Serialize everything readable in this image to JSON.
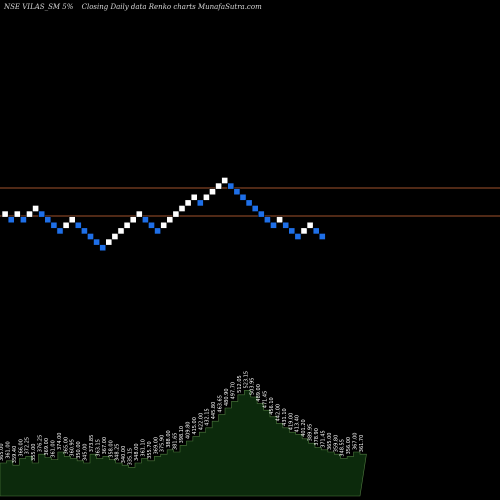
{
  "header": {
    "symbol": "NSE VILAS_SM 5%",
    "title": "Closing Daily data Renko charts MunafaSutra.com"
  },
  "colors": {
    "background": "#000000",
    "up_brick": "#ffffff",
    "down_brick": "#1e6fe8",
    "brick_border": "#000000",
    "level_line": "#a0522d",
    "volume_fill": "#0c2a0c",
    "volume_stroke": "#4f7a3f"
  },
  "chart_data": {
    "type": "renko",
    "brick_size_percent": 5,
    "reference_levels": [
      0,
      5
    ],
    "bricks": [
      {
        "level": 0,
        "dir": "up"
      },
      {
        "level": -1,
        "dir": "down"
      },
      {
        "level": 0,
        "dir": "up"
      },
      {
        "level": -1,
        "dir": "down"
      },
      {
        "level": 0,
        "dir": "up"
      },
      {
        "level": 1,
        "dir": "up"
      },
      {
        "level": 0,
        "dir": "down"
      },
      {
        "level": -1,
        "dir": "down"
      },
      {
        "level": -2,
        "dir": "down"
      },
      {
        "level": -3,
        "dir": "down"
      },
      {
        "level": -2,
        "dir": "up"
      },
      {
        "level": -1,
        "dir": "up"
      },
      {
        "level": -2,
        "dir": "down"
      },
      {
        "level": -3,
        "dir": "down"
      },
      {
        "level": -4,
        "dir": "down"
      },
      {
        "level": -5,
        "dir": "down"
      },
      {
        "level": -6,
        "dir": "down"
      },
      {
        "level": -5,
        "dir": "up"
      },
      {
        "level": -4,
        "dir": "up"
      },
      {
        "level": -3,
        "dir": "up"
      },
      {
        "level": -2,
        "dir": "up"
      },
      {
        "level": -1,
        "dir": "up"
      },
      {
        "level": 0,
        "dir": "up"
      },
      {
        "level": -1,
        "dir": "down"
      },
      {
        "level": -2,
        "dir": "down"
      },
      {
        "level": -3,
        "dir": "down"
      },
      {
        "level": -2,
        "dir": "up"
      },
      {
        "level": -1,
        "dir": "up"
      },
      {
        "level": 0,
        "dir": "up"
      },
      {
        "level": 1,
        "dir": "up"
      },
      {
        "level": 2,
        "dir": "up"
      },
      {
        "level": 3,
        "dir": "up"
      },
      {
        "level": 2,
        "dir": "down"
      },
      {
        "level": 3,
        "dir": "up"
      },
      {
        "level": 4,
        "dir": "up"
      },
      {
        "level": 5,
        "dir": "up"
      },
      {
        "level": 6,
        "dir": "up"
      },
      {
        "level": 5,
        "dir": "down"
      },
      {
        "level": 4,
        "dir": "down"
      },
      {
        "level": 3,
        "dir": "down"
      },
      {
        "level": 2,
        "dir": "down"
      },
      {
        "level": 1,
        "dir": "down"
      },
      {
        "level": 0,
        "dir": "down"
      },
      {
        "level": -1,
        "dir": "down"
      },
      {
        "level": -2,
        "dir": "down"
      },
      {
        "level": -1,
        "dir": "up"
      },
      {
        "level": -2,
        "dir": "down"
      },
      {
        "level": -3,
        "dir": "down"
      },
      {
        "level": -4,
        "dir": "down"
      },
      {
        "level": -3,
        "dir": "up"
      },
      {
        "level": -2,
        "dir": "up"
      },
      {
        "level": -3,
        "dir": "down"
      },
      {
        "level": -4,
        "dir": "down"
      }
    ],
    "volume": {
      "values": [
        30,
        32,
        28,
        34,
        36,
        30,
        38,
        35,
        33,
        40,
        36,
        34,
        32,
        30,
        38,
        34,
        36,
        33,
        30,
        28,
        26,
        30,
        34,
        32,
        36,
        38,
        42,
        40,
        46,
        50,
        54,
        58,
        62,
        68,
        74,
        80,
        86,
        92,
        96,
        90,
        84,
        78,
        72,
        66,
        62,
        58,
        56,
        52,
        48,
        44,
        42,
        40,
        38,
        34,
        36,
        40,
        38
      ],
      "labels": [
        "365.00",
        "361.00",
        "359.40",
        "366.00",
        "372.25",
        "355.00",
        "376.25",
        "369.00",
        "361.00",
        "374.00",
        "365.00",
        "360.95",
        "350.00",
        "345.00",
        "373.85",
        "363.15",
        "367.00",
        "358.00",
        "348.25",
        "340.00",
        "335.15",
        "348.00",
        "361.10",
        "355.70",
        "369.00",
        "375.90",
        "388.00",
        "381.65",
        "398.10",
        "409.80",
        "415.00",
        "422.00",
        "432.15",
        "445.80",
        "463.65",
        "480.90",
        "497.70",
        "512.05",
        "523.15",
        "503.95",
        "489.00",
        "471.45",
        "456.10",
        "442.00",
        "431.10",
        "419.00",
        "413.40",
        "401.20",
        "389.95",
        "378.90",
        "371.45",
        "365.00",
        "359.80",
        "348.55",
        "356.00",
        "367.00",
        "361.70"
      ]
    }
  }
}
